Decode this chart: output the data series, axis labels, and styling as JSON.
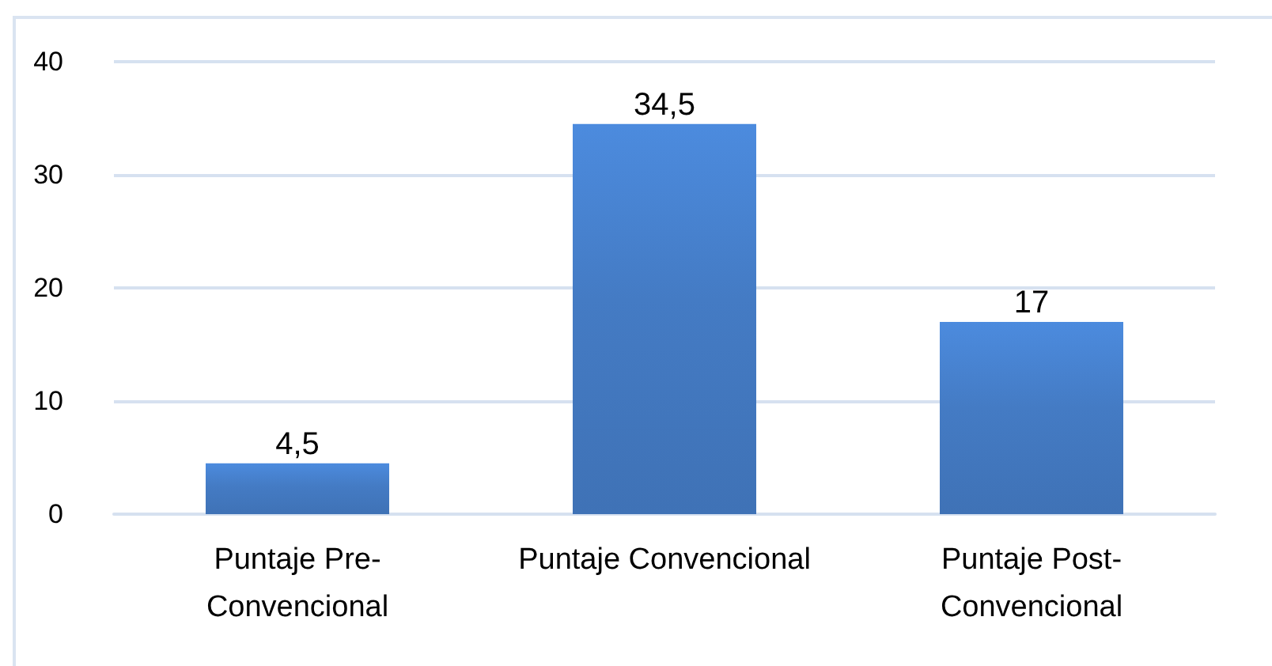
{
  "chart_data": {
    "type": "bar",
    "categories": [
      "Puntaje Pre-\nConvencional",
      "Puntaje Convencional",
      "Puntaje Post-\nConvencional"
    ],
    "values": [
      4.5,
      34.5,
      17
    ],
    "value_labels": [
      "4,5",
      "34,5",
      "17"
    ],
    "color": "#3f72b6",
    "ylim": [
      0,
      40
    ],
    "yticks": [
      0,
      10,
      20,
      30,
      40
    ],
    "grid": "y"
  }
}
